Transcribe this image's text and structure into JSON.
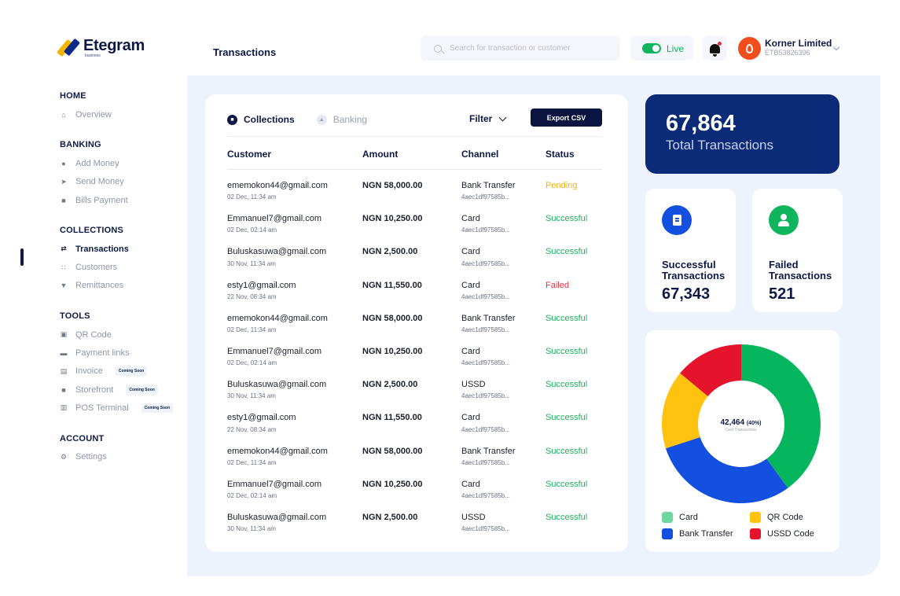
{
  "brand": {
    "name": "Etegram",
    "sub": "business"
  },
  "colors": {
    "navy": "#0b2a78",
    "success": "#18b45c",
    "pending": "#f2b21b",
    "failed": "#e5343d",
    "card_green": "#10b45c",
    "bank_blue": "#1350e0",
    "qr_yellow": "#ffc20e",
    "ussd_red": "#e5132b"
  },
  "sidebar": {
    "sections": [
      {
        "heading": "HOME",
        "items": [
          {
            "label": "Overview",
            "icon": "home-icon"
          }
        ]
      },
      {
        "heading": "BANKING",
        "items": [
          {
            "label": "Add Money",
            "icon": "plus-circle-icon"
          },
          {
            "label": "Send Money",
            "icon": "send-icon"
          },
          {
            "label": "Bills Payment",
            "icon": "bill-icon"
          }
        ]
      },
      {
        "heading": "COLLECTIONS",
        "items": [
          {
            "label": "Transactions",
            "icon": "transfer-arrows-icon",
            "active": true
          },
          {
            "label": "Customers",
            "icon": "users-icon"
          },
          {
            "label": "Remittances",
            "icon": "remittance-icon"
          }
        ]
      },
      {
        "heading": "TOOLS",
        "items": [
          {
            "label": "QR Code",
            "icon": "qr-code-icon"
          },
          {
            "label": "Payment links",
            "icon": "card-icon"
          },
          {
            "label": "Invoice",
            "icon": "invoice-icon",
            "badge": "Coming Soon"
          },
          {
            "label": "Storefront",
            "icon": "store-icon",
            "badge": "Coming Soon"
          },
          {
            "label": "POS Terminal",
            "icon": "pos-icon",
            "badge": "Coming Soon"
          }
        ]
      },
      {
        "heading": "ACCOUNT",
        "items": [
          {
            "label": "Settings",
            "icon": "gear-icon"
          }
        ]
      }
    ]
  },
  "header": {
    "title": "Transactions",
    "search_placeholder": "Search for transaction or customer",
    "live_label": "Live",
    "account_name": "Korner Limited",
    "account_id": "ETB53826396"
  },
  "transactions": {
    "tabs": [
      {
        "label": "Collections",
        "active": true
      },
      {
        "label": "Banking",
        "active": false
      }
    ],
    "filter_label": "Filter",
    "export_label": "Export CSV",
    "columns": [
      "Customer",
      "Amount",
      "Channel",
      "Status"
    ],
    "rows": [
      {
        "email": "ememokon44@gmail.com",
        "date": "02 Dec, 11:34 am",
        "amount": "NGN 58,000.00",
        "channel": "Bank Transfer",
        "ref": "4aec1df97585b...",
        "status": "Pending"
      },
      {
        "email": "Emmanuel7@gmail.com",
        "date": "02 Dec, 02:14 am",
        "amount": "NGN 10,250.00",
        "channel": "Card",
        "ref": "4aec1df97585b...",
        "status": "Successful"
      },
      {
        "email": "Buluskasuwa@gmail.com",
        "date": "30 Nov, 11:34 am",
        "amount": "NGN 2,500.00",
        "channel": "Card",
        "ref": "4aec1df97585b...",
        "status": "Successful"
      },
      {
        "email": "esty1@gmail.com",
        "date": "22 Nov, 08:34 am",
        "amount": "NGN 11,550.00",
        "channel": "Card",
        "ref": "4aec1df97585b...",
        "status": "Failed"
      },
      {
        "email": "ememokon44@gmail.com",
        "date": "02 Dec, 11:34 am",
        "amount": "NGN 58,000.00",
        "channel": "Bank Transfer",
        "ref": "4aec1df97585b...",
        "status": "Successful"
      },
      {
        "email": "Emmanuel7@gmail.com",
        "date": "02 Dec, 02:14 am",
        "amount": "NGN 10,250.00",
        "channel": "Card",
        "ref": "4aec1df97585b...",
        "status": "Successful"
      },
      {
        "email": "Buluskasuwa@gmail.com",
        "date": "30 Nov, 11:34 am",
        "amount": "NGN 2,500.00",
        "channel": "USSD",
        "ref": "4aec1df97585b...",
        "status": "Successful"
      },
      {
        "email": "esty1@gmail.com",
        "date": "22 Nov, 08:34 am",
        "amount": "NGN 11,550.00",
        "channel": "Card",
        "ref": "4aec1df97585b...",
        "status": "Successful"
      },
      {
        "email": "ememokon44@gmail.com",
        "date": "02 Dec, 11:34 am",
        "amount": "NGN 58,000.00",
        "channel": "Bank Transfer",
        "ref": "4aec1df97585b...",
        "status": "Successful"
      },
      {
        "email": "Emmanuel7@gmail.com",
        "date": "02 Dec, 02:14 am",
        "amount": "NGN 10,250.00",
        "channel": "Card",
        "ref": "4aec1df97585b...",
        "status": "Successful"
      },
      {
        "email": "Buluskasuwa@gmail.com",
        "date": "30 Nov, 11:34 am",
        "amount": "NGN 2,500.00",
        "channel": "USSD",
        "ref": "4aec1df97585b...",
        "status": "Successful"
      }
    ]
  },
  "stats": {
    "total_value": "67,864",
    "total_label": "Total Transactions",
    "successful_label": "Successful Transactions",
    "successful_value": "67,343",
    "failed_label": "Failed Transactions",
    "failed_value": "521"
  },
  "chart_data": {
    "type": "pie",
    "center_value": "42,464",
    "center_percent": "(40%)",
    "center_label": "Card Transactions",
    "slices": [
      {
        "name": "Card",
        "value": 40,
        "color": "#06b65f"
      },
      {
        "name": "Bank Transfer",
        "value": 30,
        "color": "#1350e0"
      },
      {
        "name": "QR Code",
        "value": 16,
        "color": "#ffc20e"
      },
      {
        "name": "USSD Code",
        "value": 14,
        "color": "#e5132b"
      }
    ],
    "legend": [
      {
        "name": "Card",
        "color": "#6fd6a0"
      },
      {
        "name": "QR Code",
        "color": "#ffc20e"
      },
      {
        "name": "Bank Transfer",
        "color": "#1350e0"
      },
      {
        "name": "USSD Code",
        "color": "#e5132b"
      }
    ]
  }
}
